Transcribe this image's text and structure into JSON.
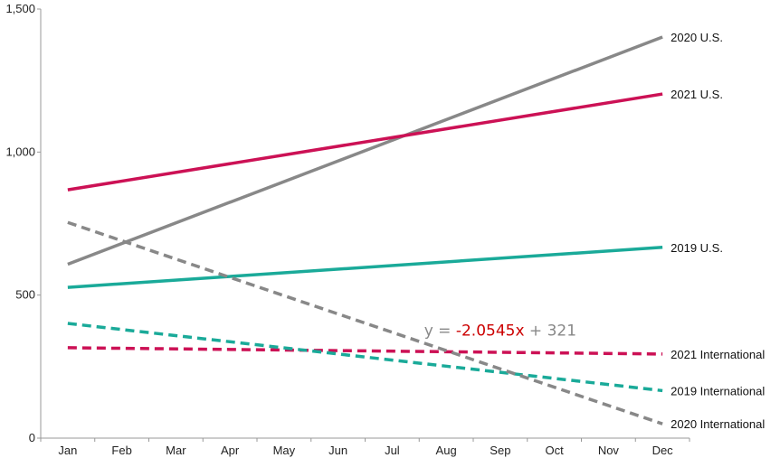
{
  "chart_data": {
    "type": "line",
    "title": "",
    "xlabel": "",
    "ylabel": "",
    "categories": [
      "Jan",
      "Feb",
      "Mar",
      "Apr",
      "May",
      "Jun",
      "Jul",
      "Aug",
      "Sep",
      "Oct",
      "Nov",
      "Dec"
    ],
    "ylim": [
      0,
      1500
    ],
    "yticks": [
      0,
      500,
      1000,
      1500
    ],
    "ytick_labels": [
      "0",
      "500",
      "1,000",
      "1,500"
    ],
    "grid": false,
    "series": [
      {
        "name": "2020 U.S.",
        "start": 608,
        "end": 1402,
        "color": "#888888",
        "dash": "solid"
      },
      {
        "name": "2021 U.S.",
        "start": 868,
        "end": 1203,
        "color": "#cc1155",
        "dash": "solid"
      },
      {
        "name": "2019 U.S.",
        "start": 527,
        "end": 667,
        "color": "#1aaa99",
        "dash": "solid"
      },
      {
        "name": "2021 International",
        "start": 316,
        "end": 294,
        "color": "#cc1155",
        "dash": "dashed"
      },
      {
        "name": "2019 International",
        "start": 401,
        "end": 166,
        "color": "#1aaa99",
        "dash": "dashed"
      },
      {
        "name": "2020 International",
        "start": 754,
        "end": 50,
        "color": "#888888",
        "dash": "dashed"
      }
    ],
    "annotation": {
      "prefix": "y = ",
      "slope": "-2.0545x",
      "suffix": " + 321",
      "near_category": "Sep",
      "near_value": 358,
      "text_color": "#888888",
      "slope_color": "#cc0000"
    }
  }
}
